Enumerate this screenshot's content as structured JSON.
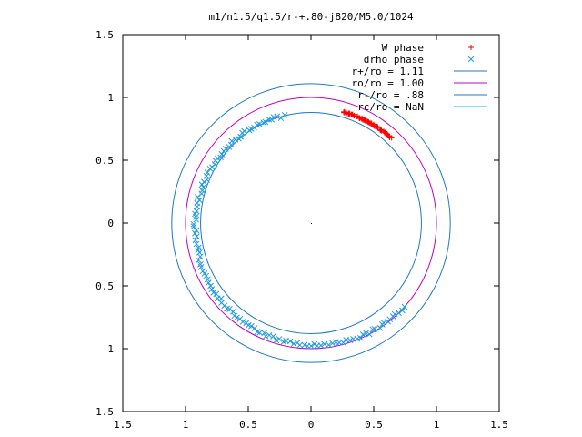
{
  "chart_data": {
    "type": "scatter",
    "title": "m1/n1.5/q1.5/r-+.80-j820/M5.0/1024",
    "xlabel": "",
    "ylabel": "",
    "xlim": [
      -1.5,
      1.5
    ],
    "ylim": [
      -1.5,
      1.5
    ],
    "x_ticks": [
      -1.5,
      -1,
      -0.5,
      0,
      0.5,
      1,
      1.5
    ],
    "y_ticks": [
      -1.5,
      -1,
      -0.5,
      0,
      0.5,
      1,
      1.5
    ],
    "x_tick_labels": [
      "1.5",
      "1",
      "0.5",
      "0",
      "0.5",
      "1",
      "1.5"
    ],
    "y_tick_labels": [
      "1.5",
      "1",
      "0.5",
      "0",
      "0.5",
      "1",
      "1.5"
    ],
    "grid": false,
    "legend_position": "top-right",
    "circles": [
      {
        "name": "r+/ro = 1.11",
        "radius": 1.11,
        "color": "#1f78c8"
      },
      {
        "name": "ro/ro = 1.00",
        "radius": 1.0,
        "color": "#c000c0"
      },
      {
        "name": "r-/ro = .88",
        "radius": 0.88,
        "color": "#1f78c8"
      },
      {
        "name": "rc/ro = NaN",
        "radius": null,
        "color": "#00c8e8"
      }
    ],
    "series": [
      {
        "name": "W phase",
        "marker": "plus",
        "color": "#ff0000",
        "arc": {
          "radius_start": 0.92,
          "radius_end": 0.93,
          "angle_start_deg": 74,
          "angle_end_deg": 47,
          "angle_spread": 0.02,
          "radius_spread": 0.01,
          "count": 70
        }
      },
      {
        "name": "drho phase",
        "marker": "x",
        "color": "#1f9ae0",
        "arc": {
          "radius_start": 0.88,
          "radius_end": 1.0,
          "angle_start_deg": 104,
          "angle_end_deg": 318,
          "angle_spread": 0.015,
          "radius_spread": 0.025,
          "count": 130
        }
      }
    ],
    "origin_marker": [
      0,
      0
    ]
  }
}
